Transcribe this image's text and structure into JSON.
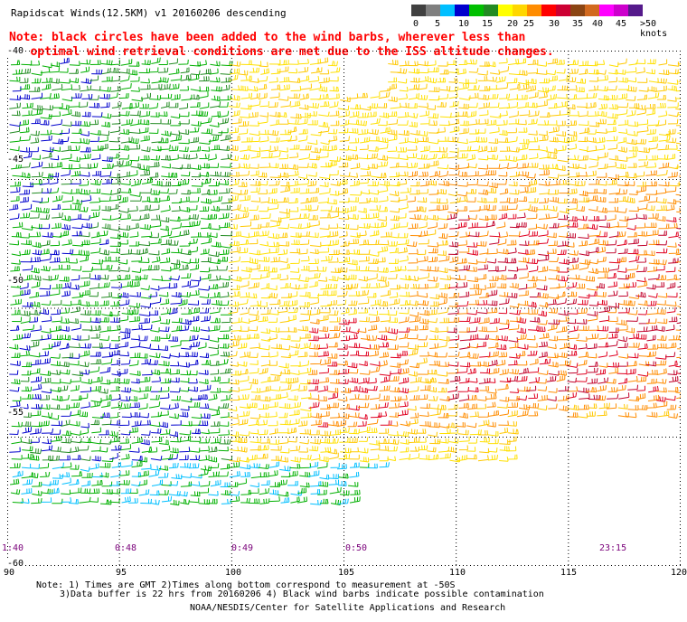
{
  "header": {
    "title": "Rapidscat Winds(12.5KM) v1 20160206 descending",
    "note_lines": [
      "Note: black circles have been added to the wind barbs, wherever less than",
      "   optimal wind retrieval conditions are met due to the ISS altitude changes."
    ]
  },
  "legend": {
    "colors": [
      "#404040",
      "#7f7f7f",
      "#00bfff",
      "#0000cd",
      "#00c000",
      "#228b22",
      "#ffff00",
      "#ffd700",
      "#ff8c00",
      "#ff0000",
      "#cc0033",
      "#8b4513",
      "#d2691e",
      "#ff00ff",
      "#cc00cc",
      "#551a8b"
    ],
    "labels": [
      "0",
      "5",
      "10",
      "15",
      "20",
      "25",
      "30",
      "35",
      "40",
      "45",
      ">50 knots"
    ]
  },
  "map": {
    "lat_labels": [
      "-40",
      "-45",
      "-50",
      "-55",
      "-60"
    ],
    "lon_labels": [
      "90",
      "95",
      "100",
      "105",
      "110",
      "115",
      "120"
    ],
    "lat_range": [
      -60,
      -40
    ],
    "lon_range": [
      90,
      120
    ],
    "time_labels": [
      {
        "text": "1:40",
        "lon": 90
      },
      {
        "text": "0:48",
        "lon": 95
      },
      {
        "text": "0:49",
        "lon": 100
      },
      {
        "text": "0:50",
        "lon": 105
      },
      {
        "text": "23:15",
        "lon": 117
      }
    ]
  },
  "footer": {
    "footnote_1": "Note: 1) Times are GMT 2)Times along bottom correspond to measurement at -50S",
    "footnote_2": "3)Data buffer is 22 hrs from 20160206 4) Black wind barbs indicate possible contamination",
    "credit": "NOAA/NESDIS/Center for Satellite Applications and Research"
  }
}
